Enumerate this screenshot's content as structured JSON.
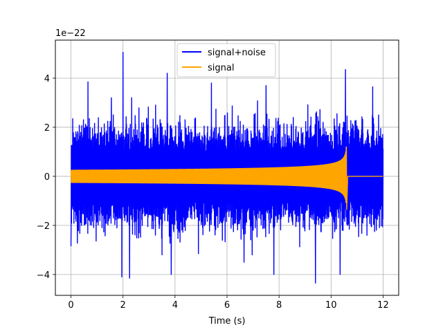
{
  "chart_data": {
    "type": "line",
    "title": "",
    "xlabel": "Time (s)",
    "ylabel": "",
    "y_offset_label": "1e−22",
    "xlim": [
      -0.6,
      12.6
    ],
    "ylim": [
      -4.85,
      5.55
    ],
    "xticks": [
      0,
      2,
      4,
      6,
      8,
      10,
      12
    ],
    "yticks": [
      -4,
      -2,
      0,
      2,
      4
    ],
    "ytick_labels": [
      "−4",
      "−2",
      "0",
      "2",
      "4"
    ],
    "grid": true,
    "legend_position": "top-center",
    "series": [
      {
        "name": "signal+noise",
        "color": "#0000ff",
        "kind": "noise",
        "x_range": [
          0,
          12
        ],
        "typical_amplitude": 2.0,
        "peaks": [
          {
            "x": 0.0,
            "y": -2.85
          },
          {
            "x": 0.65,
            "y": 3.85
          },
          {
            "x": 1.55,
            "y": 3.2
          },
          {
            "x": 1.95,
            "y": -4.1
          },
          {
            "x": 2.0,
            "y": 5.05
          },
          {
            "x": 2.25,
            "y": -4.15
          },
          {
            "x": 3.7,
            "y": 4.2
          },
          {
            "x": 3.85,
            "y": -4.0
          },
          {
            "x": 5.4,
            "y": 3.8
          },
          {
            "x": 6.65,
            "y": -3.5
          },
          {
            "x": 7.5,
            "y": 3.7
          },
          {
            "x": 7.8,
            "y": -4.0
          },
          {
            "x": 9.4,
            "y": -4.35
          },
          {
            "x": 10.35,
            "y": -4.0
          },
          {
            "x": 10.55,
            "y": 4.35
          },
          {
            "x": 11.6,
            "y": 3.65
          }
        ]
      },
      {
        "name": "signal",
        "color": "#ffa500",
        "kind": "chirp",
        "x_range": [
          0,
          12
        ],
        "base_amplitude": 0.25,
        "merger_time": 10.6,
        "peak_amplitude": [
          1.2,
          -1.35
        ],
        "after_merger_value": 0
      }
    ]
  }
}
